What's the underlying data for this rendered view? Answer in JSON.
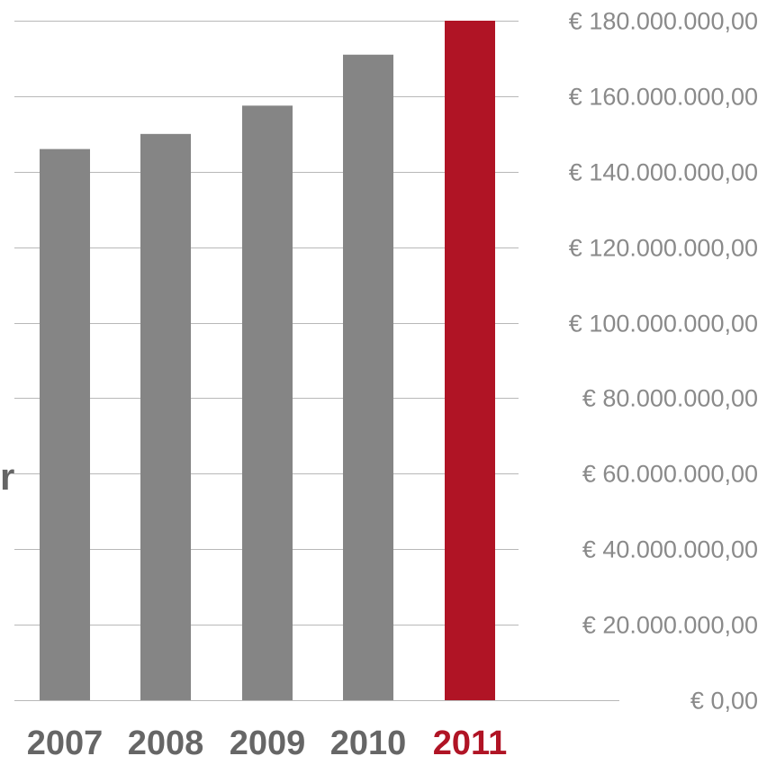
{
  "chart_data": {
    "type": "bar",
    "categories": [
      "2007",
      "2008",
      "2009",
      "2010",
      "2011"
    ],
    "values": [
      146000000,
      150000000,
      157500000,
      171000000,
      180000000
    ],
    "highlight_index": 4,
    "ylim": [
      0,
      180000000
    ],
    "yticks": [
      0,
      20000000,
      40000000,
      60000000,
      80000000,
      100000000,
      120000000,
      140000000,
      160000000,
      180000000
    ],
    "ytick_labels": [
      "€ 0,00",
      "€ 20.000.000,00",
      "€ 40.000.000,00",
      "€ 60.000.000,00",
      "€ 80.000.000,00",
      "€ 100.000.000,00",
      "€ 120.000.000,00",
      "€ 140.000.000,00",
      "€ 160.000.000,00",
      "€ 180.000.000,00"
    ],
    "grid": true,
    "y_axis_position": "right",
    "colors": {
      "bar": "#858585",
      "highlight": "#b01425",
      "grid": "#b8b8b8",
      "tick_label": "#8a8a8a",
      "category_label": "#666666"
    },
    "edge_text": "r"
  }
}
